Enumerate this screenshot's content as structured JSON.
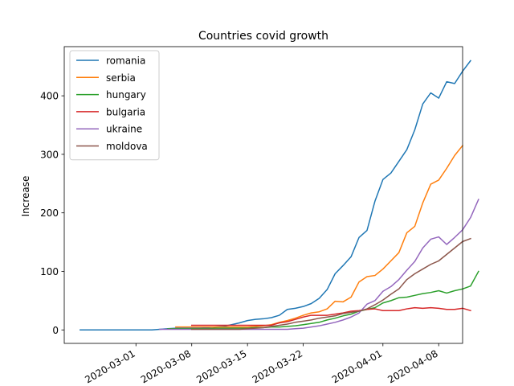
{
  "chart_data": {
    "type": "line",
    "title": "Countries covid growth",
    "xlabel": "",
    "ylabel": "Increase",
    "x_start": "2020-02-23",
    "x_range": [
      "2020-02-21",
      "2020-04-11"
    ],
    "ylim": [
      -23,
      484
    ],
    "x_ticks": [
      "2020-03-01",
      "2020-03-08",
      "2020-03-15",
      "2020-03-22",
      "2020-04-01",
      "2020-04-08"
    ],
    "y_ticks": [
      0,
      100,
      200,
      300,
      400
    ],
    "grid": false,
    "legend_position": "upper left",
    "series": [
      {
        "name": "romania",
        "color": "#1f77b4",
        "start": "2020-02-23",
        "values": [
          0,
          0,
          0,
          0,
          0,
          0,
          0,
          0,
          0,
          0,
          1,
          2,
          3,
          3,
          3,
          3,
          4,
          5,
          6,
          9,
          12,
          16,
          18,
          19,
          21,
          25,
          35,
          37,
          40,
          45,
          54,
          69,
          96,
          110,
          125,
          158,
          170,
          220,
          257,
          268,
          288,
          308,
          342,
          386,
          405,
          396,
          424,
          421,
          442,
          460
        ]
      },
      {
        "name": "serbia",
        "color": "#ff7f0e",
        "start": "2020-03-06",
        "values": [
          5,
          5,
          5,
          5,
          5,
          5,
          5,
          5,
          5,
          5,
          6,
          7,
          9,
          13,
          16,
          20,
          25,
          29,
          31,
          36,
          49,
          48,
          56,
          82,
          91,
          93,
          104,
          118,
          132,
          166,
          177,
          217,
          249,
          256,
          276,
          298,
          315
        ]
      },
      {
        "name": "hungary",
        "color": "#2ca02c",
        "start": "2020-03-05",
        "values": [
          2,
          2,
          2,
          2,
          2,
          2,
          3,
          3,
          3,
          3,
          3,
          4,
          4,
          5,
          5,
          6,
          7,
          9,
          11,
          13,
          17,
          20,
          24,
          27,
          32,
          35,
          38,
          46,
          50,
          55,
          56,
          59,
          62,
          64,
          67,
          63,
          67,
          70,
          75,
          100
        ]
      },
      {
        "name": "bulgaria",
        "color": "#d62728",
        "start": "2020-03-08",
        "values": [
          8,
          8,
          8,
          8,
          8,
          8,
          8,
          8,
          8,
          8,
          8,
          12,
          14,
          18,
          22,
          25,
          25,
          25,
          27,
          29,
          32,
          33,
          35,
          36,
          33,
          33,
          33,
          36,
          38,
          37,
          38,
          37,
          35,
          35,
          37,
          33
        ]
      },
      {
        "name": "ukraine",
        "color": "#9467bd",
        "start": "2020-03-04",
        "values": [
          1,
          1,
          1,
          1,
          1,
          1,
          1,
          1,
          1,
          1,
          1,
          1,
          1,
          1,
          1,
          1,
          1,
          2,
          3,
          5,
          7,
          10,
          13,
          17,
          22,
          29,
          44,
          50,
          66,
          74,
          86,
          102,
          117,
          140,
          155,
          159,
          146,
          158,
          171,
          192,
          223
        ]
      },
      {
        "name": "moldova",
        "color": "#8c564b",
        "start": "2020-03-08",
        "values": [
          1,
          1,
          1,
          1,
          1,
          1,
          1,
          2,
          3,
          4,
          6,
          8,
          10,
          13,
          15,
          17,
          20,
          22,
          24,
          28,
          30,
          32,
          36,
          43,
          51,
          61,
          70,
          86,
          96,
          104,
          112,
          118,
          129,
          140,
          151,
          156
        ]
      }
    ]
  }
}
